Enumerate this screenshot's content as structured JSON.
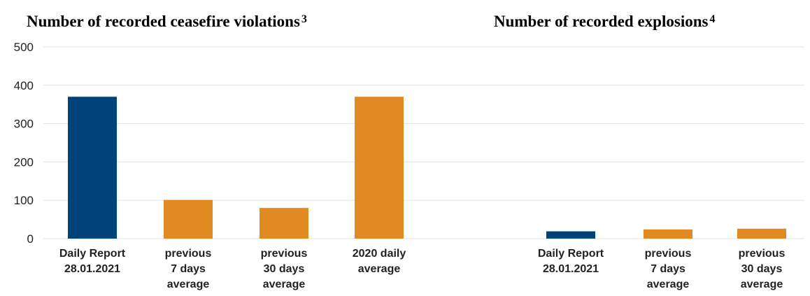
{
  "chart_data": [
    {
      "type": "bar",
      "title": "Number of recorded ceasefire violations",
      "title_footnote": "3",
      "categories": [
        [
          "Daily Report",
          "28.01.2021"
        ],
        [
          "previous",
          "7 days",
          "average"
        ],
        [
          "previous",
          "30 days",
          "average"
        ],
        [
          "2020 daily",
          "average"
        ]
      ],
      "values": [
        370,
        101,
        80,
        370
      ],
      "colors": [
        "#00427a",
        "#e08a21",
        "#e08a21",
        "#e08a21"
      ],
      "ylim": [
        0,
        500
      ],
      "yticks": [
        0,
        100,
        200,
        300,
        400,
        500
      ],
      "grid": true
    },
    {
      "type": "bar",
      "title": "Number of recorded explosions",
      "title_footnote": "4",
      "categories": [
        [
          "Daily Report",
          "28.01.2021"
        ],
        [
          "previous",
          "7 days",
          "average"
        ],
        [
          "previous",
          "30 days",
          "average"
        ]
      ],
      "values": [
        19,
        24,
        26
      ],
      "colors": [
        "#00427a",
        "#e08a21",
        "#e08a21"
      ],
      "ylim": [
        0,
        500
      ]
    }
  ]
}
